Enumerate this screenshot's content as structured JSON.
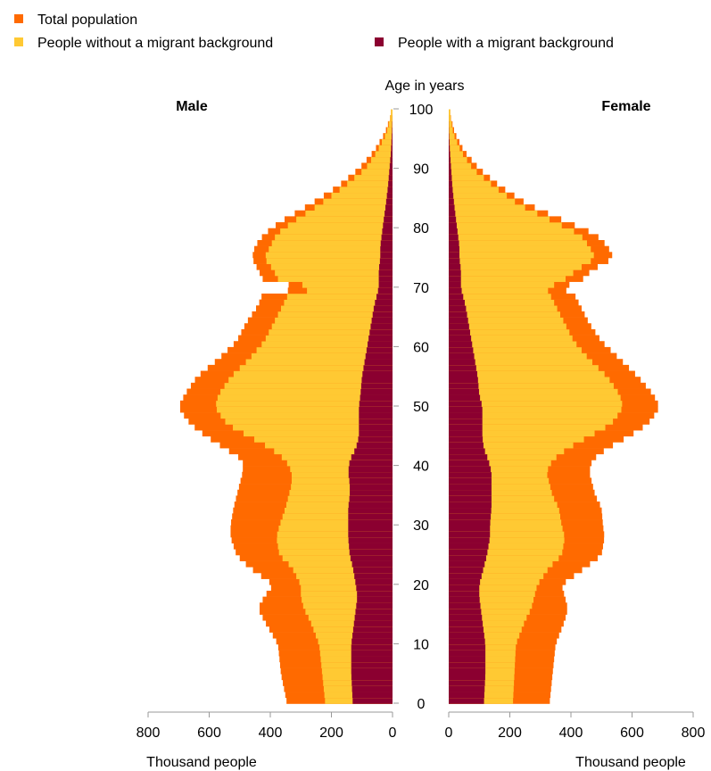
{
  "legend": {
    "total": "Total population",
    "without": "People without a migrant background",
    "with": "People with a migrant background"
  },
  "colors": {
    "total": "#ff6a00",
    "without": "#ffc933",
    "with": "#8b0030",
    "axis": "#999999"
  },
  "chart_data": {
    "type": "bar",
    "orientation": "horizontal-pyramid",
    "title": "",
    "center_label": "Age in years",
    "left_label": "Male",
    "right_label": "Female",
    "xlabel_left": "Thousand people",
    "xlabel_right": "Thousand people",
    "age_ticks": [
      0,
      10,
      20,
      30,
      40,
      50,
      60,
      70,
      80,
      90,
      100
    ],
    "value_ticks": [
      0,
      200,
      400,
      600,
      800
    ],
    "xlim": [
      0,
      800
    ],
    "ylim": [
      0,
      100
    ],
    "age_knots": [
      0,
      5,
      10,
      14,
      16,
      18,
      20,
      23,
      25,
      28,
      30,
      33,
      35,
      37,
      39,
      41,
      43,
      45,
      47,
      49,
      50,
      52,
      55,
      58,
      61,
      64,
      67,
      69,
      70,
      71,
      73,
      75,
      77,
      79,
      81,
      84,
      87,
      90,
      93,
      96,
      99
    ],
    "series": [
      {
        "name": "Total population",
        "key": "total",
        "male": [
          345,
          365,
          375,
          420,
          440,
          420,
          390,
          470,
          510,
          530,
          530,
          520,
          510,
          500,
          490,
          490,
          550,
          610,
          660,
          690,
          700,
          680,
          640,
          570,
          510,
          480,
          440,
          425,
          260,
          420,
          440,
          460,
          450,
          420,
          370,
          270,
          180,
          110,
          60,
          25,
          5
        ],
        "female": [
          330,
          340,
          350,
          380,
          390,
          380,
          370,
          450,
          500,
          510,
          505,
          500,
          480,
          470,
          460,
          470,
          520,
          590,
          650,
          680,
          690,
          670,
          620,
          560,
          500,
          460,
          430,
          410,
          360,
          430,
          470,
          540,
          520,
          480,
          390,
          260,
          170,
          100,
          50,
          20,
          5
        ]
      },
      {
        "name": "People without a migrant background",
        "key": "without",
        "male": [
          220,
          230,
          240,
          270,
          290,
          300,
          300,
          330,
          370,
          380,
          370,
          350,
          340,
          330,
          330,
          350,
          400,
          470,
          540,
          570,
          580,
          570,
          530,
          470,
          420,
          390,
          360,
          340,
          220,
          370,
          390,
          420,
          400,
          380,
          330,
          240,
          160,
          90,
          50,
          20,
          5
        ],
        "female": [
          210,
          215,
          220,
          250,
          270,
          280,
          290,
          330,
          370,
          380,
          370,
          360,
          340,
          330,
          320,
          340,
          390,
          460,
          530,
          560,
          570,
          560,
          520,
          460,
          410,
          380,
          350,
          330,
          320,
          370,
          420,
          480,
          460,
          430,
          350,
          230,
          150,
          80,
          40,
          15,
          5
        ]
      },
      {
        "name": "People with a migrant background",
        "key": "with",
        "male": [
          130,
          135,
          135,
          125,
          120,
          115,
          120,
          130,
          140,
          145,
          145,
          145,
          140,
          140,
          145,
          140,
          120,
          110,
          110,
          110,
          110,
          105,
          100,
          90,
          80,
          70,
          60,
          50,
          45,
          45,
          45,
          40,
          40,
          35,
          30,
          22,
          15,
          10,
          5,
          2,
          0
        ],
        "female": [
          115,
          120,
          120,
          110,
          105,
          100,
          100,
          115,
          125,
          135,
          135,
          140,
          140,
          140,
          140,
          130,
          115,
          110,
          110,
          110,
          110,
          100,
          95,
          85,
          75,
          65,
          55,
          45,
          40,
          40,
          40,
          35,
          35,
          30,
          25,
          18,
          12,
          8,
          4,
          1,
          0
        ]
      }
    ]
  }
}
